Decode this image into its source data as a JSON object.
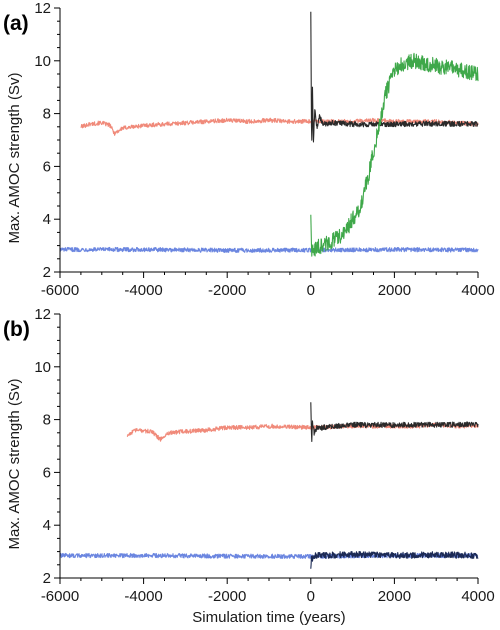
{
  "chart_data": [
    {
      "panel_label": "(a)",
      "type": "line",
      "xlabel": "",
      "ylabel": "Max. AMOC strength (Sv)",
      "xlim": [
        -6000,
        4000
      ],
      "ylim": [
        2,
        12
      ],
      "xticks": [
        -6000,
        -4000,
        -2000,
        0,
        2000,
        4000
      ],
      "yticks": [
        2,
        4,
        6,
        8,
        10,
        12
      ],
      "tick_labels_x": [
        "-6000",
        "-4000",
        "-2000",
        "0",
        "2000",
        "4000"
      ],
      "tick_labels_y": [
        "2",
        "4",
        "6",
        "8",
        "10",
        "12"
      ],
      "grid": false,
      "series": [
        {
          "color": "#f08a7a",
          "x": [
            -5500,
            -5300,
            -5000,
            -4800,
            -4700,
            -4500,
            -4000,
            -3500,
            -3000,
            -2500,
            -2000,
            -1500,
            -1000,
            -500,
            0,
            500,
            1000,
            1500,
            2000,
            2500,
            3000,
            3500,
            4000
          ],
          "y": [
            7.5,
            7.6,
            7.65,
            7.55,
            7.25,
            7.45,
            7.55,
            7.6,
            7.65,
            7.7,
            7.75,
            7.7,
            7.75,
            7.7,
            7.7,
            7.7,
            7.7,
            7.75,
            7.7,
            7.7,
            7.7,
            7.65,
            7.6
          ],
          "noise": 0.08
        },
        {
          "color": "#6b86e0",
          "x": [
            -6000,
            -4000,
            -2000,
            0,
            2000,
            4000
          ],
          "y": [
            2.85,
            2.85,
            2.82,
            2.83,
            2.85,
            2.83
          ],
          "noise": 0.08
        },
        {
          "color": "#2a2a2a",
          "x": [
            0,
            20,
            40,
            60,
            100,
            150,
            200,
            300,
            500,
            1000,
            2000,
            3000,
            4000
          ],
          "y": [
            11.9,
            6.4,
            9.0,
            6.9,
            8.2,
            7.4,
            7.9,
            7.6,
            7.65,
            7.6,
            7.6,
            7.62,
            7.6
          ],
          "noise": 0.1
        },
        {
          "color": "#3fa84a",
          "x": [
            0,
            20,
            40,
            100,
            200,
            400,
            600,
            800,
            1000,
            1200,
            1400,
            1600,
            1800,
            2000,
            2200,
            2500,
            3000,
            3500,
            4000
          ],
          "y": [
            4.3,
            2.8,
            2.75,
            2.9,
            2.95,
            3.1,
            3.25,
            3.45,
            4.0,
            4.5,
            5.8,
            7.3,
            8.8,
            9.6,
            9.9,
            10.0,
            9.8,
            9.7,
            9.5
          ],
          "noise": 0.3
        }
      ]
    },
    {
      "panel_label": "(b)",
      "type": "line",
      "xlabel": "Simulation time (years)",
      "ylabel": "Max. AMOC strength (Sv)",
      "xlim": [
        -6000,
        4000
      ],
      "ylim": [
        2,
        12
      ],
      "xticks": [
        -6000,
        -4000,
        -2000,
        0,
        2000,
        4000
      ],
      "yticks": [
        2,
        4,
        6,
        8,
        10,
        12
      ],
      "tick_labels_x": [
        "-6000",
        "-4000",
        "-2000",
        "0",
        "2000",
        "4000"
      ],
      "tick_labels_y": [
        "2",
        "4",
        "6",
        "8",
        "10",
        "12"
      ],
      "grid": false,
      "series": [
        {
          "color": "#f08a7a",
          "x": [
            -4400,
            -4200,
            -3800,
            -3600,
            -3400,
            -3000,
            -2500,
            -2000,
            -1500,
            -1000,
            -500,
            0,
            500,
            1000,
            1500,
            2000,
            2500,
            3000,
            3500,
            4000
          ],
          "y": [
            7.4,
            7.6,
            7.55,
            7.25,
            7.5,
            7.55,
            7.6,
            7.7,
            7.7,
            7.75,
            7.72,
            7.7,
            7.72,
            7.75,
            7.75,
            7.75,
            7.75,
            7.8,
            7.75,
            7.75
          ],
          "noise": 0.08
        },
        {
          "color": "#6b86e0",
          "x": [
            -6000,
            -4000,
            -2000,
            0,
            2000,
            4000
          ],
          "y": [
            2.85,
            2.85,
            2.83,
            2.82,
            2.85,
            2.85
          ],
          "noise": 0.08
        },
        {
          "color": "#2a2a2a",
          "x": [
            0,
            20,
            40,
            80,
            150,
            300,
            500,
            1000,
            2000,
            3000,
            4000
          ],
          "y": [
            8.7,
            7.1,
            7.9,
            7.5,
            7.7,
            7.7,
            7.75,
            7.8,
            7.8,
            7.8,
            7.82
          ],
          "noise": 0.1
        },
        {
          "color": "#1c2a55",
          "x": [
            0,
            20,
            40,
            100,
            300,
            1000,
            2000,
            3000,
            4000
          ],
          "y": [
            2.4,
            2.9,
            2.75,
            2.85,
            2.85,
            2.9,
            2.85,
            2.88,
            2.85
          ],
          "noise": 0.12
        }
      ]
    }
  ]
}
